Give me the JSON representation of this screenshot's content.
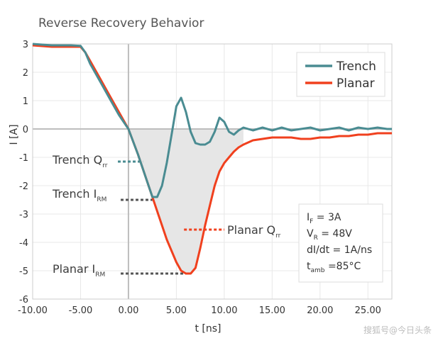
{
  "chart_data": {
    "type": "line",
    "title": "Reverse Recovery Behavior",
    "xlabel": "t [ns]",
    "ylabel": "I [A]",
    "xlim": [
      -10,
      27.5
    ],
    "ylim": [
      -6,
      3
    ],
    "xticks": [
      -10,
      -5,
      0,
      5,
      10,
      15,
      20,
      25
    ],
    "xtick_labels": [
      "-10.00",
      "-5.00",
      "0.00",
      "5.00",
      "10.00",
      "15.00",
      "20.00",
      "25.00"
    ],
    "yticks": [
      3,
      2,
      1,
      0,
      -1,
      -2,
      -3,
      -4,
      -5,
      -6
    ],
    "ytick_labels": [
      "3",
      "2",
      "1",
      "0",
      "-1",
      "-2",
      "-3",
      "-4",
      "-5",
      "-6"
    ],
    "grid": true,
    "legend_position": "top-right",
    "series": [
      {
        "name": "Trench",
        "color": "#4a8c92",
        "x": [
          -10,
          -8,
          -6,
          -5,
          -4.5,
          -4,
          -3,
          -2,
          -1,
          0,
          1,
          2,
          2.5,
          3,
          3.5,
          4,
          4.5,
          5,
          5.5,
          6,
          6.5,
          7,
          7.5,
          8,
          8.5,
          9,
          9.5,
          10,
          10.5,
          11,
          11.5,
          12,
          13,
          14,
          15,
          16,
          17,
          18,
          19,
          20,
          21,
          22,
          23,
          24,
          25,
          26,
          27,
          27.5
        ],
        "y": [
          3,
          2.95,
          2.95,
          2.93,
          2.7,
          2.3,
          1.7,
          1.1,
          0.5,
          0,
          -0.9,
          -1.9,
          -2.4,
          -2.4,
          -2.0,
          -1.2,
          -0.2,
          0.8,
          1.1,
          0.6,
          -0.1,
          -0.5,
          -0.55,
          -0.55,
          -0.45,
          -0.1,
          0.4,
          0.25,
          -0.1,
          -0.2,
          -0.05,
          0.05,
          -0.05,
          0.05,
          -0.05,
          0.05,
          -0.05,
          0,
          0.05,
          -0.05,
          0,
          0.05,
          -0.05,
          0.05,
          0,
          0.05,
          0,
          0
        ]
      },
      {
        "name": "Planar",
        "color": "#f0401e",
        "x": [
          -10,
          -8,
          -6,
          -5,
          -4.5,
          -4,
          -3,
          -2,
          -1,
          0,
          1,
          2,
          3,
          4,
          5,
          5.5,
          6,
          6.5,
          7,
          7.5,
          8,
          8.5,
          9,
          9.5,
          10,
          10.5,
          11,
          11.5,
          12,
          13,
          14,
          15,
          16,
          17,
          18,
          19,
          20,
          21,
          22,
          23,
          24,
          25,
          26,
          27,
          27.5
        ],
        "y": [
          2.95,
          2.9,
          2.9,
          2.9,
          2.7,
          2.4,
          1.8,
          1.2,
          0.6,
          0,
          -0.9,
          -1.9,
          -2.9,
          -3.9,
          -4.7,
          -5.0,
          -5.1,
          -5.1,
          -4.9,
          -4.2,
          -3.4,
          -2.7,
          -2.0,
          -1.5,
          -1.2,
          -1.0,
          -0.8,
          -0.65,
          -0.55,
          -0.4,
          -0.35,
          -0.3,
          -0.3,
          -0.3,
          -0.35,
          -0.35,
          -0.3,
          -0.3,
          -0.25,
          -0.25,
          -0.2,
          -0.2,
          -0.15,
          -0.15,
          -0.15
        ]
      }
    ],
    "annotations": {
      "trench_qrr": {
        "main": "Trench Q",
        "sub": "rr",
        "at": [
          1.5,
          -1.15
        ]
      },
      "trench_irm": {
        "main": "Trench I",
        "sub": "RM",
        "at": [
          2.5,
          -2.5
        ]
      },
      "planar_qrr": {
        "main": "Planar Q",
        "sub": "rr",
        "at": [
          5.8,
          -3.55
        ]
      },
      "planar_irm": {
        "main": "Planar I",
        "sub": "RM",
        "at": [
          6.2,
          -5.1
        ]
      }
    },
    "conditions": [
      {
        "main": "I",
        "sub": "F",
        "rest": " = 3A"
      },
      {
        "main": "V",
        "sub": "R",
        "rest": " = 48V"
      },
      {
        "main": "dI/dt = 1A/ns",
        "sub": "",
        "rest": ""
      },
      {
        "main": "t",
        "sub": "amb",
        "rest": " =85°C"
      }
    ],
    "colors": {
      "qrr_fill": "#e6e6e6",
      "zero_axis": "#bdbdbd",
      "grid": "#e8e8e8",
      "leader_dark": "#555555",
      "leader_teal": "#4a8c92",
      "leader_red": "#f0401e"
    }
  },
  "watermark": "搜狐号@今日头条"
}
